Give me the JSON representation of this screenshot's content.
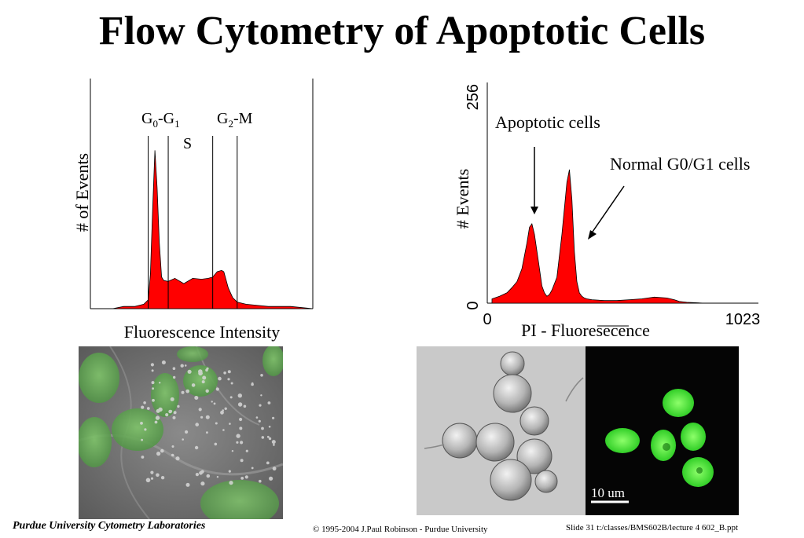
{
  "slide": {
    "title": "Flow Cytometry of Apoptotic Cells",
    "footer_left": "Purdue University Cytometry Laboratories",
    "footer_center": "© 1995-2004 J.Paul Robinson - Purdue University",
    "footer_right": "Slide 31  t:/classes/BMS602B/lecture 4 602_B.ppt"
  },
  "chart_data": [
    {
      "type": "area",
      "title": "",
      "xlabel": "Fluorescence Intensity",
      "ylabel": "# of Events",
      "gate_labels": {
        "g0g1_base1": "G",
        "g0g1_sub1": "0",
        "g0g1_mid": "-G",
        "g0g1_sub2": "1",
        "g2m_base": "G",
        "g2m_sub": "2",
        "g2m_rest": "-M",
        "s": "S"
      },
      "gates": [
        0.26,
        0.35,
        0.55,
        0.66
      ],
      "x": [
        0.0,
        0.05,
        0.1,
        0.15,
        0.2,
        0.24,
        0.26,
        0.27,
        0.28,
        0.29,
        0.3,
        0.31,
        0.32,
        0.33,
        0.35,
        0.38,
        0.42,
        0.46,
        0.5,
        0.53,
        0.55,
        0.57,
        0.59,
        0.6,
        0.62,
        0.64,
        0.66,
        0.7,
        0.8,
        0.9,
        1.0
      ],
      "y": [
        0.0,
        0.0,
        0.0,
        0.01,
        0.01,
        0.02,
        0.04,
        0.15,
        0.45,
        0.72,
        0.55,
        0.3,
        0.15,
        0.12,
        0.13,
        0.13,
        0.12,
        0.13,
        0.14,
        0.13,
        0.15,
        0.16,
        0.18,
        0.16,
        0.1,
        0.05,
        0.03,
        0.02,
        0.01,
        0.01,
        0.0
      ],
      "grid": false
    },
    {
      "type": "area",
      "title": "",
      "xlabel": "PI - Fluoresecence",
      "ylabel": "# Events",
      "xlim": [
        0,
        1023
      ],
      "ylim": [
        0,
        256
      ],
      "x_ticks": [
        "0",
        "1023"
      ],
      "y_ticks": [
        "0",
        "256"
      ],
      "annotations": [
        "Apoptotic cells",
        "Normal G0/G1 cells"
      ],
      "x": [
        0,
        30,
        60,
        80,
        100,
        120,
        140,
        150,
        160,
        170,
        180,
        190,
        200,
        210,
        220,
        230,
        240,
        260,
        280,
        300,
        310,
        320,
        330,
        340,
        350,
        360,
        370,
        380,
        400,
        450,
        500,
        550,
        600,
        650,
        700,
        730,
        750,
        780,
        850,
        1023
      ],
      "y": [
        5,
        8,
        12,
        18,
        25,
        40,
        70,
        88,
        92,
        80,
        60,
        40,
        20,
        12,
        8,
        10,
        15,
        30,
        80,
        140,
        155,
        120,
        60,
        25,
        12,
        8,
        6,
        5,
        4,
        3,
        3,
        4,
        5,
        7,
        6,
        4,
        2,
        1,
        0,
        0
      ],
      "grid": false
    }
  ]
}
